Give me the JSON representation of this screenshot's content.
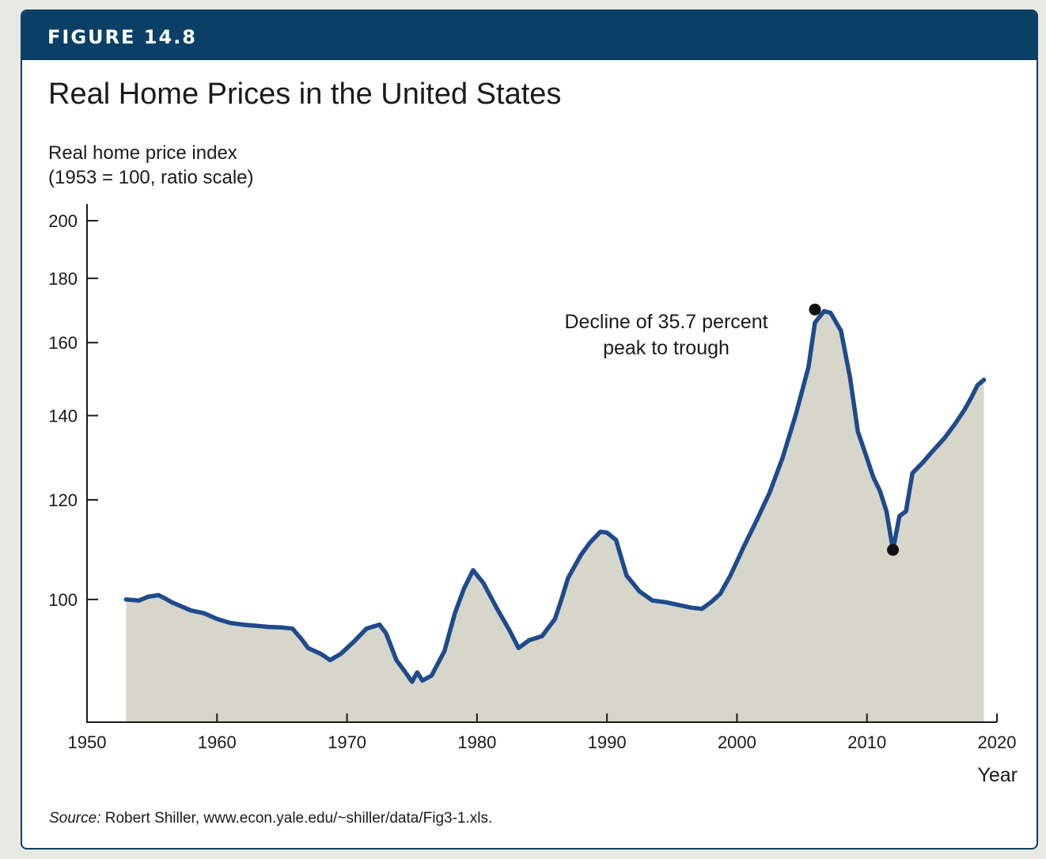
{
  "header": {
    "figure_label": "FIGURE 14.8"
  },
  "source": {
    "prefix": "Source:",
    "text": " Robert Shiller, www.econ.yale.edu/~shiller/data/Fig3-1.xls."
  },
  "colors": {
    "header_bar": "#0b4066",
    "line": "#1f4a8c",
    "fill": "#d6d7ca",
    "marker": "#111111"
  },
  "chart_data": {
    "type": "area",
    "title": "Real Home Prices in the United States",
    "ylabel_lines": [
      "Real home price index",
      "(1953 = 100, ratio scale)"
    ],
    "xlabel": "Year",
    "yscale": "log",
    "xlim": [
      1950,
      2020
    ],
    "ylim": [
      80,
      205
    ],
    "xticks": [
      1950,
      1960,
      1970,
      1980,
      1990,
      2000,
      2010,
      2020
    ],
    "yticks": [
      100,
      120,
      140,
      160,
      180,
      200
    ],
    "grid": false,
    "series": [
      {
        "x": [
          1953.0,
          1954.0,
          1954.7,
          1955.5,
          1956.0,
          1956.5,
          1957.2,
          1958.0,
          1959.0,
          1960.0,
          1961.0,
          1962.0,
          1963.0,
          1964.0,
          1965.0,
          1965.8,
          1966.5,
          1967.0,
          1968.0,
          1968.7,
          1969.5,
          1970.5,
          1971.5,
          1972.5,
          1973.0,
          1973.8,
          1974.5,
          1975.0,
          1975.4,
          1975.8,
          1976.5,
          1977.5,
          1978.3,
          1979.0,
          1979.7,
          1980.5,
          1981.5,
          1982.5,
          1983.2,
          1984.0,
          1985.0,
          1986.0,
          1986.5,
          1987.0,
          1988.0,
          1988.7,
          1989.5,
          1990.0,
          1990.7,
          1991.5,
          1992.5,
          1993.5,
          1994.5,
          1995.5,
          1996.5,
          1997.3,
          1998.0,
          1998.7,
          1999.5,
          2000.5,
          2001.5,
          2002.5,
          2003.5,
          2004.5,
          2005.5,
          2006.0,
          2006.7,
          2007.2,
          2008.0,
          2008.7,
          2009.3,
          2010.0,
          2010.5,
          2011.0,
          2011.5,
          2012.0,
          2012.5,
          2013.0,
          2013.5,
          2014.3,
          2015.0,
          2016.0,
          2016.8,
          2017.5,
          2018.0,
          2018.5,
          2019.0
        ],
        "values": [
          100.0,
          99.8,
          100.5,
          100.8,
          100.2,
          99.5,
          98.8,
          98.0,
          97.5,
          96.5,
          95.8,
          95.5,
          95.3,
          95.1,
          95.0,
          94.8,
          93.0,
          91.5,
          90.5,
          89.5,
          90.5,
          92.5,
          94.8,
          95.5,
          94.0,
          89.5,
          87.5,
          86.0,
          87.5,
          86.2,
          87.0,
          91.0,
          97.5,
          102.0,
          105.5,
          103.0,
          98.5,
          94.5,
          91.5,
          92.8,
          93.5,
          96.5,
          100.0,
          104.0,
          108.5,
          111.0,
          113.2,
          113.0,
          111.5,
          104.5,
          101.5,
          99.8,
          99.5,
          99.0,
          98.5,
          98.3,
          99.5,
          101.0,
          104.5,
          110.0,
          115.5,
          121.5,
          129.5,
          140.0,
          153.0,
          166.0,
          169.5,
          169.0,
          163.5,
          150.0,
          136.0,
          129.5,
          125.0,
          122.0,
          117.5,
          109.5,
          116.5,
          117.5,
          126.0,
          128.5,
          131.0,
          134.5,
          138.0,
          141.5,
          144.5,
          148.0,
          149.5
        ]
      }
    ],
    "annotation": {
      "lines": [
        "Decline of 35.7 percent",
        "peak to trough"
      ],
      "peak": {
        "x": 2006.0,
        "y": 170.0
      },
      "trough": {
        "x": 2012.0,
        "y": 109.5
      }
    }
  }
}
